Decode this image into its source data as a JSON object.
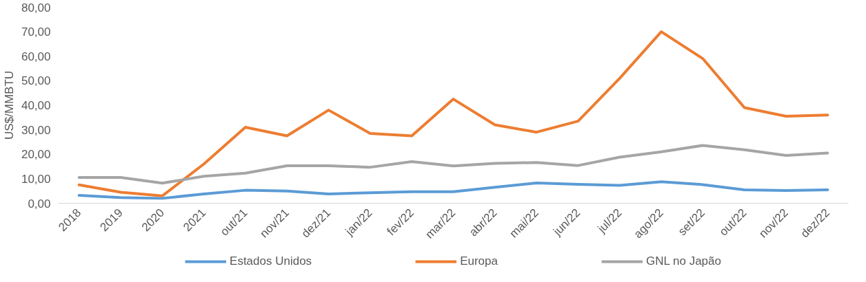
{
  "chart_data": {
    "type": "line",
    "ylabel": "US$/MMBTU",
    "categories": [
      "2018",
      "2019",
      "2020",
      "2021",
      "out/21",
      "nov/21",
      "dez/21",
      "jan/22",
      "fev/22",
      "mar/22",
      "abr/22",
      "mai/22",
      "jun/22",
      "jul/22",
      "ago/22",
      "set/22",
      "out/22",
      "nov/22",
      "dez/22"
    ],
    "series": [
      {
        "name": "Estados Unidos",
        "color": "#5b9bd5",
        "values": [
          3.2,
          2.3,
          2.0,
          3.8,
          5.3,
          5.0,
          3.8,
          4.3,
          4.7,
          4.7,
          6.5,
          8.3,
          7.7,
          7.3,
          8.8,
          7.6,
          5.5,
          5.2,
          5.5
        ]
      },
      {
        "name": "Europa",
        "color": "#ed7d31",
        "values": [
          7.5,
          4.5,
          3.0,
          16.0,
          31.0,
          27.5,
          38.0,
          28.5,
          27.5,
          42.5,
          32.0,
          29.0,
          33.5,
          51.0,
          70.0,
          59.0,
          39.0,
          35.5,
          36.0
        ]
      },
      {
        "name": "GNL no Japão",
        "color": "#a5a5a5",
        "values": [
          10.5,
          10.5,
          8.2,
          11.0,
          12.3,
          15.3,
          15.3,
          14.7,
          17.0,
          15.2,
          16.3,
          16.6,
          15.4,
          18.8,
          21.0,
          23.6,
          21.8,
          19.5,
          20.5
        ]
      }
    ],
    "ylim": [
      0,
      80
    ],
    "yticks": [
      {
        "value": 0,
        "label": "0,00"
      },
      {
        "value": 10,
        "label": "10,00"
      },
      {
        "value": 20,
        "label": "20,00"
      },
      {
        "value": 30,
        "label": "30,00"
      },
      {
        "value": 40,
        "label": "40,00"
      },
      {
        "value": 50,
        "label": "50,00"
      },
      {
        "value": 60,
        "label": "60,00"
      },
      {
        "value": 70,
        "label": "70,00"
      },
      {
        "value": 80,
        "label": "80,00"
      }
    ],
    "grid": false,
    "legend": "bottom",
    "marker": "none",
    "line_style": "solid"
  }
}
